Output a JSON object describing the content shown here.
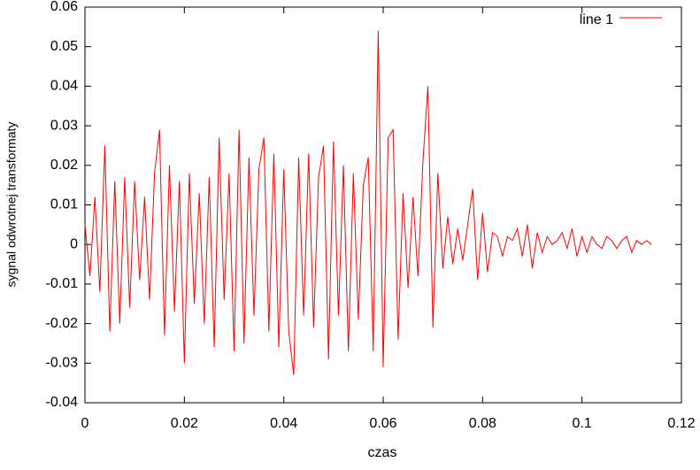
{
  "chart_data": {
    "type": "line",
    "xlabel": "czas",
    "ylabel": "sygnal odwrotnej transformaty",
    "xlim": [
      0,
      0.12
    ],
    "ylim": [
      -0.04,
      0.06
    ],
    "xticks": [
      0,
      0.02,
      0.04,
      0.06,
      0.08,
      0.1,
      0.12
    ],
    "yticks": [
      -0.04,
      -0.03,
      -0.02,
      -0.01,
      0,
      0.01,
      0.02,
      0.03,
      0.04,
      0.05,
      0.06
    ],
    "legend": "top-right",
    "x": [
      0,
      0.001,
      0.002,
      0.003,
      0.004,
      0.005,
      0.006,
      0.007,
      0.008,
      0.009,
      0.01,
      0.011,
      0.012,
      0.013,
      0.014,
      0.015,
      0.016,
      0.017,
      0.018,
      0.019,
      0.02,
      0.021,
      0.022,
      0.023,
      0.024,
      0.025,
      0.026,
      0.027,
      0.028,
      0.029,
      0.03,
      0.031,
      0.032,
      0.033,
      0.034,
      0.035,
      0.036,
      0.037,
      0.038,
      0.039,
      0.04,
      0.041,
      0.042,
      0.043,
      0.044,
      0.045,
      0.046,
      0.047,
      0.048,
      0.049,
      0.05,
      0.051,
      0.052,
      0.053,
      0.054,
      0.055,
      0.056,
      0.057,
      0.058,
      0.059,
      0.06,
      0.061,
      0.062,
      0.063,
      0.064,
      0.065,
      0.066,
      0.067,
      0.068,
      0.069,
      0.07,
      0.071,
      0.072,
      0.073,
      0.074,
      0.075,
      0.076,
      0.077,
      0.078,
      0.079,
      0.08,
      0.081,
      0.082,
      0.083,
      0.084,
      0.085,
      0.086,
      0.087,
      0.088,
      0.089,
      0.09,
      0.091,
      0.092,
      0.093,
      0.094,
      0.095,
      0.096,
      0.097,
      0.098,
      0.099,
      0.1,
      0.101,
      0.102,
      0.103,
      0.104,
      0.105,
      0.106,
      0.107,
      0.108,
      0.109,
      0.11,
      0.111,
      0.112,
      0.113,
      0.114
    ],
    "series": [
      {
        "name": "line 1",
        "color": "#ff0000",
        "values": [
          0.005,
          -0.008,
          0.012,
          -0.012,
          0.025,
          -0.022,
          0.016,
          -0.02,
          0.017,
          -0.016,
          0.016,
          -0.009,
          0.012,
          -0.014,
          0.018,
          0.029,
          -0.023,
          0.02,
          -0.017,
          0.016,
          -0.03,
          0.018,
          -0.015,
          0.013,
          -0.02,
          0.017,
          -0.026,
          0.027,
          -0.014,
          0.018,
          -0.027,
          0.029,
          -0.025,
          0.022,
          -0.018,
          0.019,
          0.027,
          -0.022,
          0.023,
          -0.026,
          0.019,
          -0.022,
          -0.033,
          0.022,
          -0.018,
          0.023,
          -0.021,
          0.017,
          0.025,
          -0.029,
          0.026,
          -0.018,
          0.02,
          -0.027,
          0.018,
          -0.019,
          0.015,
          0.022,
          -0.027,
          0.054,
          -0.031,
          0.027,
          0.029,
          -0.024,
          0.013,
          -0.011,
          0.012,
          -0.008,
          0.021,
          0.04,
          -0.021,
          0.018,
          -0.006,
          0.007,
          -0.005,
          0.004,
          -0.004,
          0.005,
          0.014,
          -0.009,
          0.008,
          -0.007,
          0.003,
          0.002,
          -0.003,
          0.002,
          0.001,
          0.004,
          -0.003,
          0.005,
          -0.006,
          0.003,
          -0.002,
          0.002,
          0,
          0.001,
          0.003,
          -0.001,
          0.004,
          -0.003,
          0.002,
          -0.002,
          0.002,
          0,
          -0.001,
          0.002,
          0.001,
          -0.001,
          0.001,
          0.002,
          -0.002,
          0.001,
          0,
          0.001,
          0
        ]
      }
    ]
  }
}
